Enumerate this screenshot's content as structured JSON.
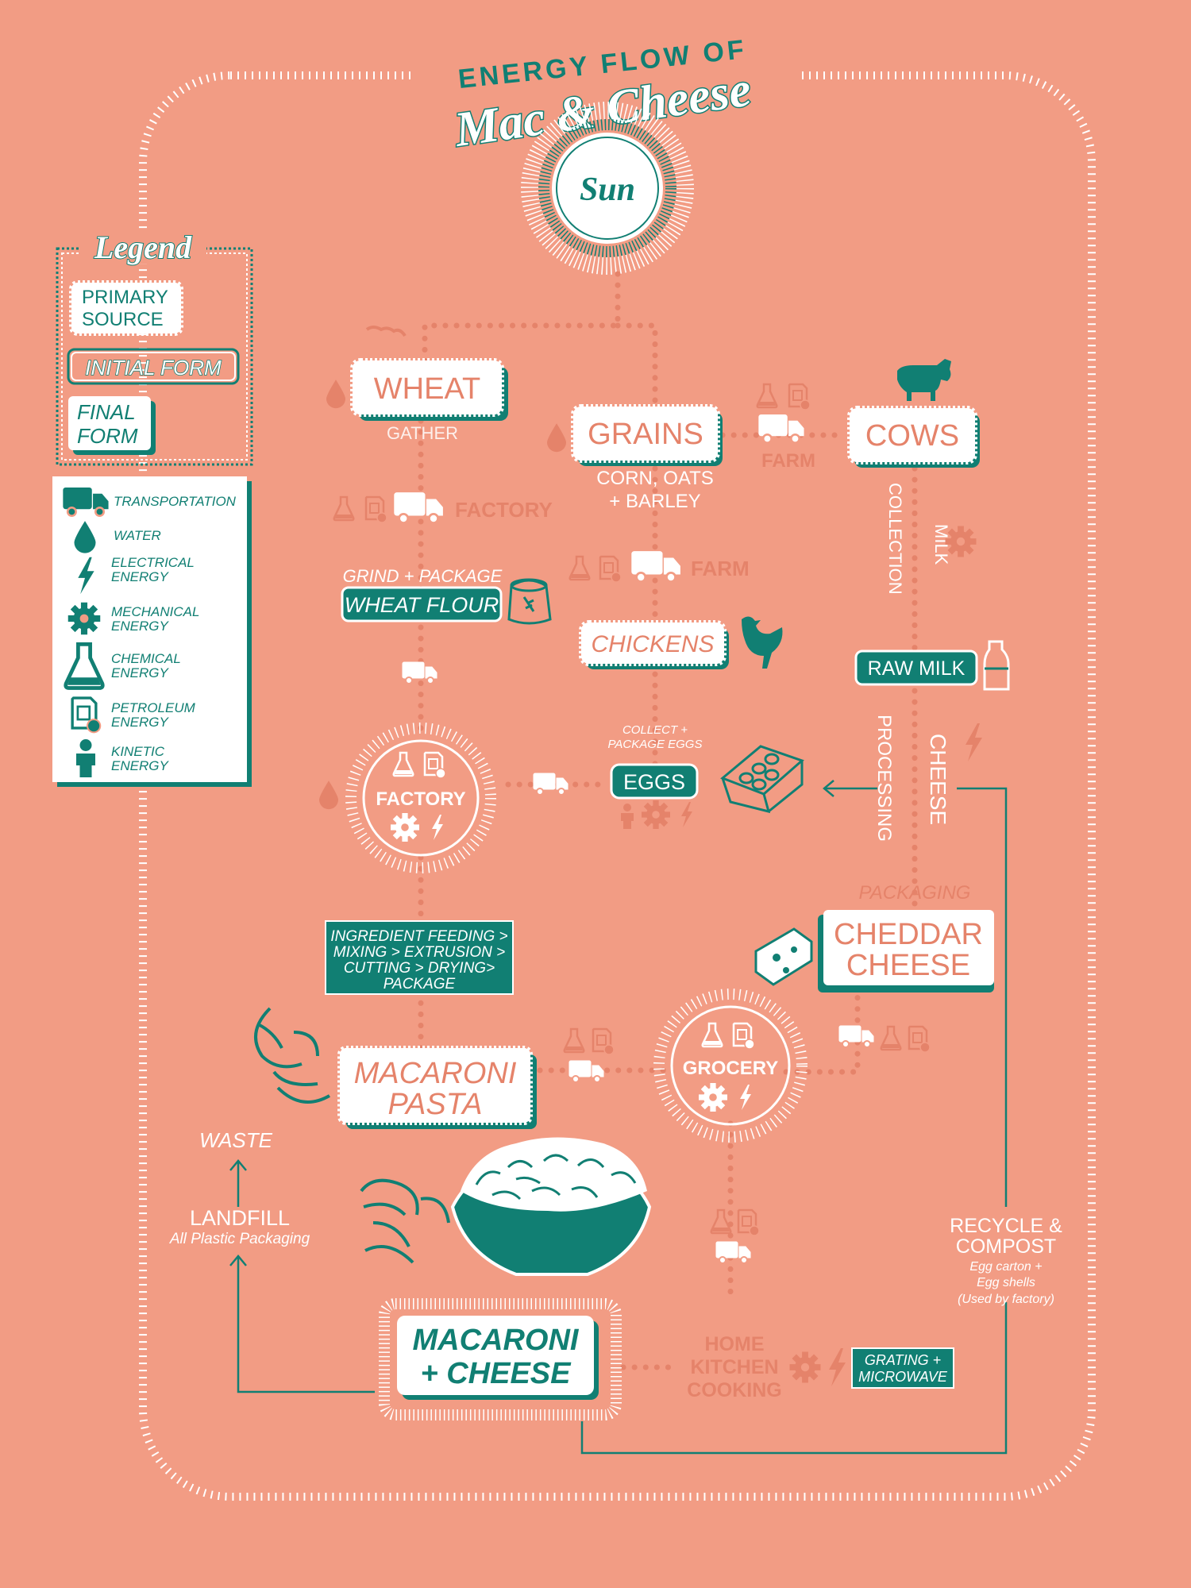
{
  "title": {
    "line1": "ENERGY FLOW OF",
    "line2": "Mac & Cheese"
  },
  "sun": "Sun",
  "legend": {
    "heading": "Legend",
    "primary": [
      "PRIMARY",
      "SOURCE"
    ],
    "initial": "INITIAL FORM",
    "final": [
      "FINAL",
      "FORM"
    ],
    "items": [
      {
        "icon": "truck-icon",
        "label": [
          "TRANSPORTATION"
        ]
      },
      {
        "icon": "water-drop-icon",
        "label": [
          "WATER"
        ]
      },
      {
        "icon": "lightning-icon",
        "label": [
          "ELECTRICAL",
          "ENERGY"
        ]
      },
      {
        "icon": "gear-icon",
        "label": [
          "MECHANICAL",
          "ENERGY"
        ]
      },
      {
        "icon": "flask-icon",
        "label": [
          "CHEMICAL",
          "ENERGY"
        ]
      },
      {
        "icon": "fuel-can-icon",
        "label": [
          "PETROLEUM",
          "ENERGY"
        ]
      },
      {
        "icon": "person-icon",
        "label": [
          "KINETIC",
          "ENERGY"
        ]
      }
    ]
  },
  "nodes": {
    "wheat": "WHEAT",
    "grains": "GRAINS",
    "cows": "COWS",
    "chickens": "CHICKENS",
    "wheat_flour": "WHEAT FLOUR",
    "raw_milk": "RAW MILK",
    "eggs": "EGGS",
    "cheddar": [
      "CHEDDAR",
      "CHEESE"
    ],
    "macaroni_pasta": [
      "MACARONI",
      "PASTA"
    ],
    "factory": "FACTORY",
    "grocery": "GROCERY",
    "mac_cheese": [
      "MACARONI",
      "+ CHEESE"
    ]
  },
  "labels": {
    "gather": "GATHER",
    "grains_sub": [
      "CORN, OATS",
      "+ BARLEY"
    ],
    "factory_transport": "FACTORY",
    "farm_top": "FARM",
    "farm_mid": "FARM",
    "grind_package": "GRIND + PACKAGE",
    "milk_collection": [
      "MILK",
      "COLLECTION"
    ],
    "collect_eggs": [
      "COLLECT +",
      "PACKAGE EGGS"
    ],
    "cheese_processing": [
      "CHEESE",
      "PROCESSING"
    ],
    "packaging": "PACKAGING",
    "process_steps": [
      "INGREDIENT FEEDING >",
      "MIXING > EXTRUSION >",
      "CUTTING > DRYING>",
      "PACKAGE"
    ],
    "waste": "WASTE",
    "landfill": "LANDFILL",
    "landfill_sub": "All Plastic Packaging",
    "recycle": [
      "RECYCLE &",
      "COMPOST"
    ],
    "recycle_sub": [
      "Egg carton  +",
      "Egg shells",
      "(Used by factory)"
    ],
    "home": [
      "HOME",
      "KITCHEN",
      "COOKING"
    ],
    "grating": [
      "GRATING +",
      "MICROWAVE"
    ]
  },
  "colors": {
    "background": "#f29c84",
    "teal": "#117f73",
    "salmon": "#e5836a",
    "white": "#ffffff"
  }
}
